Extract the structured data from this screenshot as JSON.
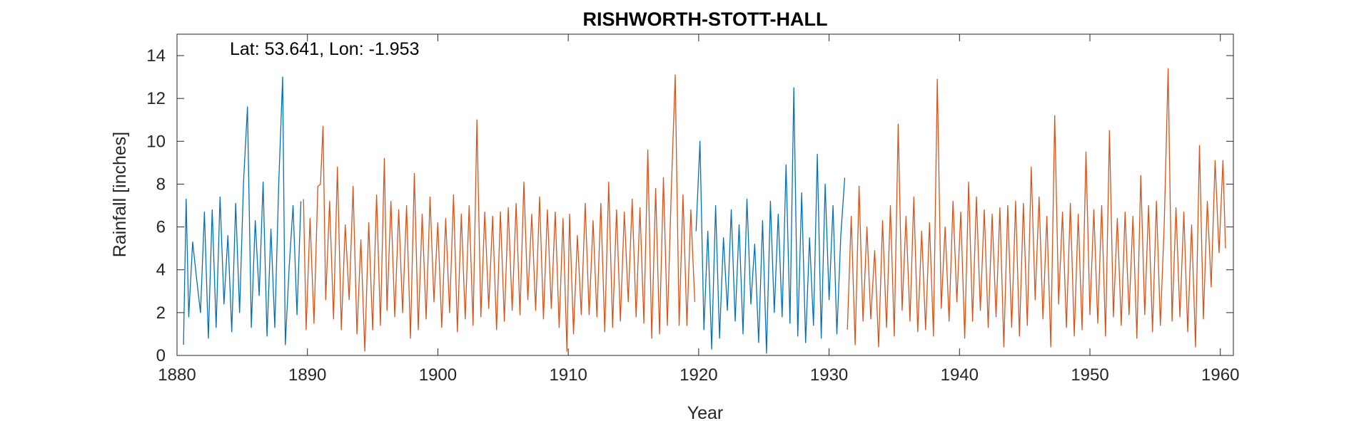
{
  "chart_data": {
    "type": "line",
    "title": "RISHWORTH-STOTT-HALL",
    "xlabel": "Year",
    "ylabel": "Rainfall [inches]",
    "annotation": "Lat: 53.641, Lon: -1.953",
    "xlim": [
      1880,
      1961
    ],
    "ylim": [
      0,
      15
    ],
    "xticks": [
      1880,
      1890,
      1900,
      1910,
      1920,
      1930,
      1940,
      1950,
      1960
    ],
    "yticks": [
      0,
      2,
      4,
      6,
      8,
      10,
      12,
      14
    ],
    "grid": false,
    "resolution": "monthly",
    "series": [
      {
        "color": "#0072BD",
        "segments": [
          {
            "x": [
              1880.5,
              1880.7,
              1880.9,
              1881.2,
              1881.5,
              1881.8,
              1882.1,
              1882.4,
              1882.7,
              1883.0,
              1883.3,
              1883.6,
              1883.9,
              1884.2,
              1884.5,
              1884.8,
              1885.1,
              1885.4,
              1885.7,
              1886.0,
              1886.3,
              1886.6,
              1886.9,
              1887.2,
              1887.5,
              1887.8,
              1888.1,
              1888.3,
              1888.6,
              1888.9,
              1889.2,
              1889.5
            ],
            "values": [
              0.5,
              7.3,
              1.8,
              5.3,
              3.6,
              2.0,
              6.7,
              0.8,
              6.8,
              1.3,
              7.4,
              2.4,
              5.6,
              1.1,
              7.1,
              2.0,
              8.1,
              11.6,
              1.3,
              6.3,
              2.8,
              8.1,
              0.9,
              5.9,
              1.3,
              8.0,
              13.0,
              0.5,
              4.1,
              7.0,
              1.9,
              7.2
            ]
          },
          {
            "x": [
              1919.8,
              1920.1,
              1920.4,
              1920.7,
              1921.0,
              1921.3,
              1921.6,
              1921.9,
              1922.2,
              1922.5,
              1922.8,
              1923.1,
              1923.4,
              1923.7,
              1924.0,
              1924.3,
              1924.6,
              1924.9,
              1925.2,
              1925.5,
              1925.8,
              1926.1,
              1926.4,
              1926.7,
              1927.0,
              1927.3,
              1927.6,
              1927.9,
              1928.2,
              1928.5,
              1928.8,
              1929.1,
              1929.4,
              1929.7,
              1930.0,
              1930.3,
              1930.6,
              1930.9,
              1931.2
            ],
            "values": [
              5.8,
              10.0,
              1.2,
              5.8,
              0.3,
              7.0,
              0.8,
              5.5,
              2.1,
              6.8,
              1.6,
              6.1,
              1.0,
              7.3,
              2.4,
              5.2,
              0.6,
              6.3,
              0.1,
              7.2,
              2.0,
              6.6,
              1.8,
              8.9,
              1.5,
              12.5,
              0.9,
              7.6,
              0.6,
              5.5,
              1.4,
              9.4,
              0.8,
              8.0,
              2.6,
              7.0,
              1.0,
              5.6,
              8.3
            ]
          }
        ]
      },
      {
        "color": "#D95319",
        "segments": [
          {
            "x": [
              1889.7,
              1889.9,
              1890.2,
              1890.5,
              1890.8,
              1891.0,
              1891.2,
              1891.4,
              1891.7,
              1892.0,
              1892.3,
              1892.6,
              1892.9,
              1893.2,
              1893.5,
              1893.8,
              1894.1,
              1894.4,
              1894.7,
              1895.0,
              1895.3,
              1895.6,
              1895.9,
              1896.1,
              1896.4,
              1896.7,
              1897.0,
              1897.3,
              1897.6,
              1897.9,
              1898.2,
              1898.5,
              1898.8,
              1899.1,
              1899.4,
              1899.7,
              1900.0,
              1900.3,
              1900.6,
              1900.9,
              1901.2,
              1901.5,
              1901.8,
              1902.1,
              1902.4,
              1902.7,
              1903.0,
              1903.3,
              1903.6,
              1903.9,
              1904.2,
              1904.5,
              1904.8,
              1905.1,
              1905.4,
              1905.7,
              1906.0,
              1906.3,
              1906.6,
              1906.9,
              1907.2,
              1907.5,
              1907.8,
              1908.1,
              1908.4,
              1908.7,
              1909.0,
              1909.3,
              1909.6,
              1909.9,
              1910.1,
              1910.4,
              1910.7,
              1911.0,
              1911.3,
              1911.6,
              1911.9,
              1912.2,
              1912.5,
              1912.8,
              1913.1,
              1913.4,
              1913.7,
              1914.0,
              1914.3,
              1914.6,
              1914.9,
              1915.2,
              1915.5,
              1915.8,
              1916.1,
              1916.4,
              1916.7,
              1917.0,
              1917.3,
              1917.6,
              1917.9,
              1918.2,
              1918.5,
              1918.8,
              1919.1,
              1919.4,
              1919.7
            ],
            "values": [
              7.3,
              1.2,
              6.4,
              1.5,
              7.9,
              8.0,
              10.7,
              2.6,
              7.2,
              1.7,
              8.8,
              1.2,
              6.1,
              2.6,
              7.9,
              1.0,
              5.4,
              0.2,
              6.2,
              1.2,
              7.5,
              1.4,
              9.2,
              2.1,
              7.2,
              1.8,
              6.8,
              2.0,
              7.0,
              0.8,
              8.5,
              1.2,
              6.6,
              1.7,
              7.4,
              2.5,
              6.2,
              1.3,
              6.4,
              2.0,
              7.5,
              1.1,
              6.6,
              1.7,
              7.0,
              1.4,
              11.0,
              1.8,
              6.7,
              2.2,
              6.5,
              1.2,
              6.7,
              1.6,
              6.9,
              2.1,
              7.1,
              1.9,
              8.1,
              2.6,
              6.6,
              2.1,
              7.4,
              1.7,
              6.8,
              2.2,
              6.7,
              1.3,
              6.4,
              0.2,
              6.6,
              1.0,
              5.6,
              1.9,
              7.1,
              1.9,
              6.3,
              1.8,
              7.1,
              1.1,
              8.1,
              1.3,
              6.8,
              1.6,
              6.7,
              2.5,
              7.3,
              1.8,
              6.9,
              1.5,
              9.6,
              0.8,
              7.8,
              1.0,
              8.3,
              1.4,
              7.7,
              13.1,
              1.4,
              7.5,
              1.4,
              6.8,
              2.5
            ]
          },
          {
            "x": [
              1931.4,
              1931.7,
              1932.0,
              1932.3,
              1932.6,
              1932.9,
              1933.2,
              1933.5,
              1933.8,
              1934.1,
              1934.4,
              1934.7,
              1935.0,
              1935.3,
              1935.6,
              1935.9,
              1936.2,
              1936.5,
              1936.8,
              1937.1,
              1937.4,
              1937.7,
              1938.0,
              1938.3,
              1938.6,
              1938.9,
              1939.2,
              1939.5,
              1939.8,
              1940.1,
              1940.4,
              1940.7,
              1941.0,
              1941.3,
              1941.6,
              1941.9,
              1942.2,
              1942.5,
              1942.8,
              1943.1,
              1943.4,
              1943.7,
              1944.0,
              1944.3,
              1944.6,
              1944.9,
              1945.2,
              1945.5,
              1945.8,
              1946.1,
              1946.4,
              1946.7,
              1947.0,
              1947.3,
              1947.6,
              1947.9,
              1948.2,
              1948.5,
              1948.8,
              1949.1,
              1949.4,
              1949.7,
              1950.0,
              1950.3,
              1950.6,
              1950.9,
              1951.2,
              1951.5,
              1951.8,
              1952.1,
              1952.4,
              1952.7,
              1953.0,
              1953.3,
              1953.6,
              1953.9,
              1954.2,
              1954.5,
              1954.8,
              1955.1,
              1955.4,
              1955.7,
              1956.0,
              1956.3,
              1956.6,
              1956.9,
              1957.2,
              1957.5,
              1957.8,
              1958.1,
              1958.4,
              1958.7,
              1959.0,
              1959.3,
              1959.6,
              1959.9,
              1960.2,
              1960.4
            ],
            "values": [
              1.2,
              6.5,
              0.5,
              7.9,
              1.6,
              6.0,
              1.7,
              4.9,
              0.4,
              6.3,
              1.3,
              7.0,
              0.9,
              10.8,
              2.1,
              6.5,
              1.6,
              7.4,
              1.1,
              5.8,
              1.2,
              6.2,
              0.9,
              12.9,
              2.2,
              6.0,
              1.6,
              7.2,
              2.5,
              6.7,
              0.8,
              8.1,
              1.6,
              7.4,
              2.1,
              6.8,
              1.3,
              6.6,
              1.8,
              6.9,
              0.4,
              7.0,
              1.3,
              7.2,
              0.9,
              7.1,
              1.4,
              8.8,
              2.6,
              7.4,
              1.7,
              6.5,
              0.4,
              11.2,
              2.4,
              6.7,
              1.3,
              7.1,
              0.9,
              6.6,
              1.2,
              9.5,
              1.9,
              6.8,
              1.5,
              7.0,
              0.9,
              10.5,
              1.8,
              6.4,
              1.4,
              6.7,
              1.9,
              6.5,
              0.8,
              8.4,
              1.9,
              7.0,
              1.1,
              7.2,
              1.4,
              6.2,
              13.4,
              1.6,
              6.9,
              1.8,
              6.7,
              1.1,
              6.1,
              0.4,
              9.8,
              1.7,
              7.2,
              3.2,
              9.1,
              4.8,
              9.1,
              5.0
            ]
          }
        ]
      }
    ]
  }
}
